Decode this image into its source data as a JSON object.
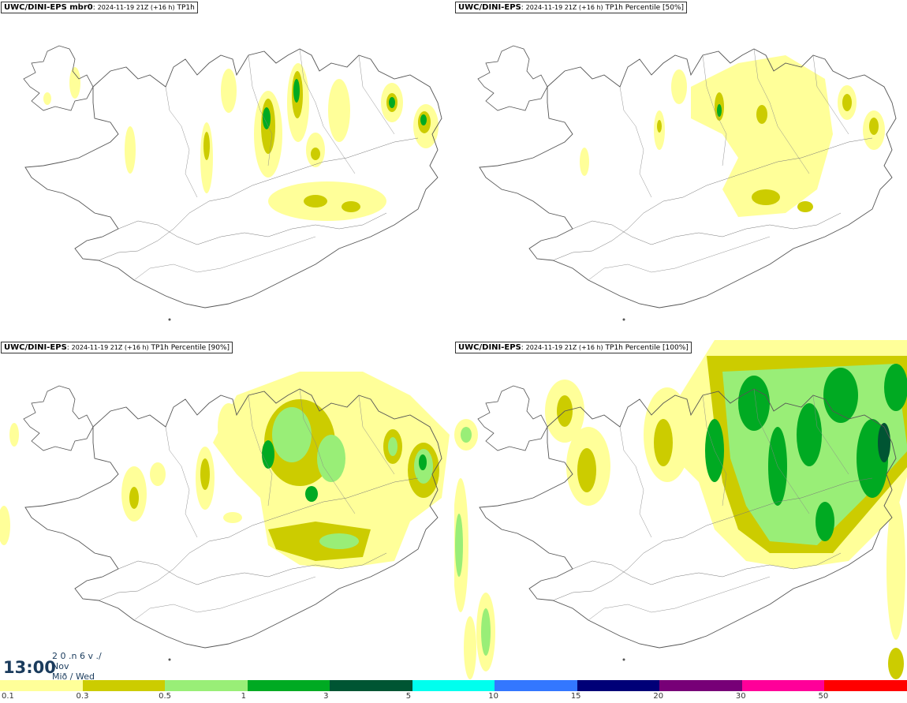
{
  "panels": [
    {
      "model": "UWC/DINI-EPS mbr0",
      "run": "2024-11-19 21Z (+16 h)",
      "field": "TP1h"
    },
    {
      "model": "UWC/DINI-EPS",
      "run": "2024-11-19 21Z (+16 h)",
      "field": "TP1h Percentile [50%]"
    },
    {
      "model": "UWC/DINI-EPS",
      "run": "2024-11-19 21Z (+16 h)",
      "field": "TP1h Percentile [90%]"
    },
    {
      "model": "UWC/DINI-EPS",
      "run": "2024-11-19 21Z (+16 h)",
      "field": "TP1h Percentile [100%]"
    }
  ],
  "time": {
    "hour": "13:00",
    "date_top": "2 0 .n 6 v ./",
    "month": "Nov",
    "day": "Mið / Wed"
  },
  "legend": {
    "labels": [
      "0.1",
      "0.3",
      "0.5",
      "1",
      "3",
      "5",
      "10",
      "15",
      "20",
      "30",
      "50"
    ],
    "colors": [
      "#ffff99",
      "#cccc00",
      "#99ee77",
      "#00aa22",
      "#005533",
      "#00ffee",
      "#3377ff",
      "#000077",
      "#770077",
      "#ff0099",
      "#ff0000"
    ]
  },
  "colors": {
    "light": "#ffff99",
    "olive": "#cccc00",
    "lightgreen": "#99ee77",
    "green": "#00aa22",
    "darkgreen": "#005533"
  }
}
